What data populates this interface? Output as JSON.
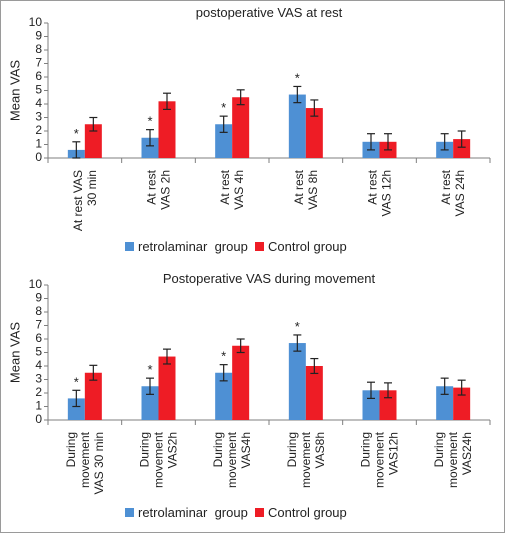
{
  "colors": {
    "retrolaminar": "#4e90d4",
    "control": "#ee1c25",
    "axis": "#7f7f7f",
    "errorbar": "#222222"
  },
  "chart_data": [
    {
      "type": "bar",
      "title": "postoperative VAS at rest",
      "ylabel": "Mean VAS",
      "xlabel": "",
      "ylim": [
        0,
        10
      ],
      "yticks": [
        0,
        1,
        2,
        3,
        4,
        5,
        6,
        7,
        8,
        9,
        10
      ],
      "grid": false,
      "legend_position": "bottom",
      "categories": [
        [
          "At rest  VAS",
          "30 min"
        ],
        [
          "At rest",
          "VAS 2h"
        ],
        [
          "At rest",
          "VAS 4h"
        ],
        [
          "At rest",
          "VAS 8h"
        ],
        [
          "At rest",
          "VAS 12h"
        ],
        [
          "At rest",
          "VAS 24h"
        ]
      ],
      "series": [
        {
          "name": "retrolaminar  group",
          "values": [
            0.6,
            1.5,
            2.5,
            4.7,
            1.2,
            1.2
          ],
          "error": [
            0.6,
            0.6,
            0.6,
            0.6,
            0.6,
            0.6
          ]
        },
        {
          "name": "Control group",
          "values": [
            2.5,
            4.2,
            4.5,
            3.7,
            1.2,
            1.4
          ],
          "error": [
            0.5,
            0.6,
            0.55,
            0.6,
            0.6,
            0.6
          ]
        }
      ],
      "annotations": [
        "*",
        "*",
        "*",
        "*",
        "",
        ""
      ]
    },
    {
      "type": "bar",
      "title": "Postoperative VAS during movement",
      "ylabel": "Mean VAS",
      "xlabel": "",
      "ylim": [
        0,
        10
      ],
      "yticks": [
        0,
        1,
        2,
        3,
        4,
        5,
        6,
        7,
        8,
        9,
        10
      ],
      "grid": false,
      "legend_position": "bottom",
      "categories": [
        [
          "During",
          "movement",
          "VAS 30 min"
        ],
        [
          "During",
          "movement",
          "VAS2h"
        ],
        [
          "During",
          "movement",
          "VAS4h"
        ],
        [
          "During",
          "movement",
          "VAS8h"
        ],
        [
          "During",
          "movement",
          "VAS12h"
        ],
        [
          "During",
          "movement",
          "VAS24h"
        ]
      ],
      "series": [
        {
          "name": "retrolaminar  group",
          "values": [
            1.6,
            2.5,
            3.5,
            5.7,
            2.2,
            2.5
          ],
          "error": [
            0.6,
            0.6,
            0.6,
            0.6,
            0.6,
            0.6
          ]
        },
        {
          "name": "Control group",
          "values": [
            3.5,
            4.7,
            5.5,
            4.0,
            2.2,
            2.4
          ],
          "error": [
            0.55,
            0.55,
            0.5,
            0.55,
            0.55,
            0.55
          ]
        }
      ],
      "annotations": [
        "*",
        "*",
        "*",
        "*",
        "",
        ""
      ]
    }
  ]
}
